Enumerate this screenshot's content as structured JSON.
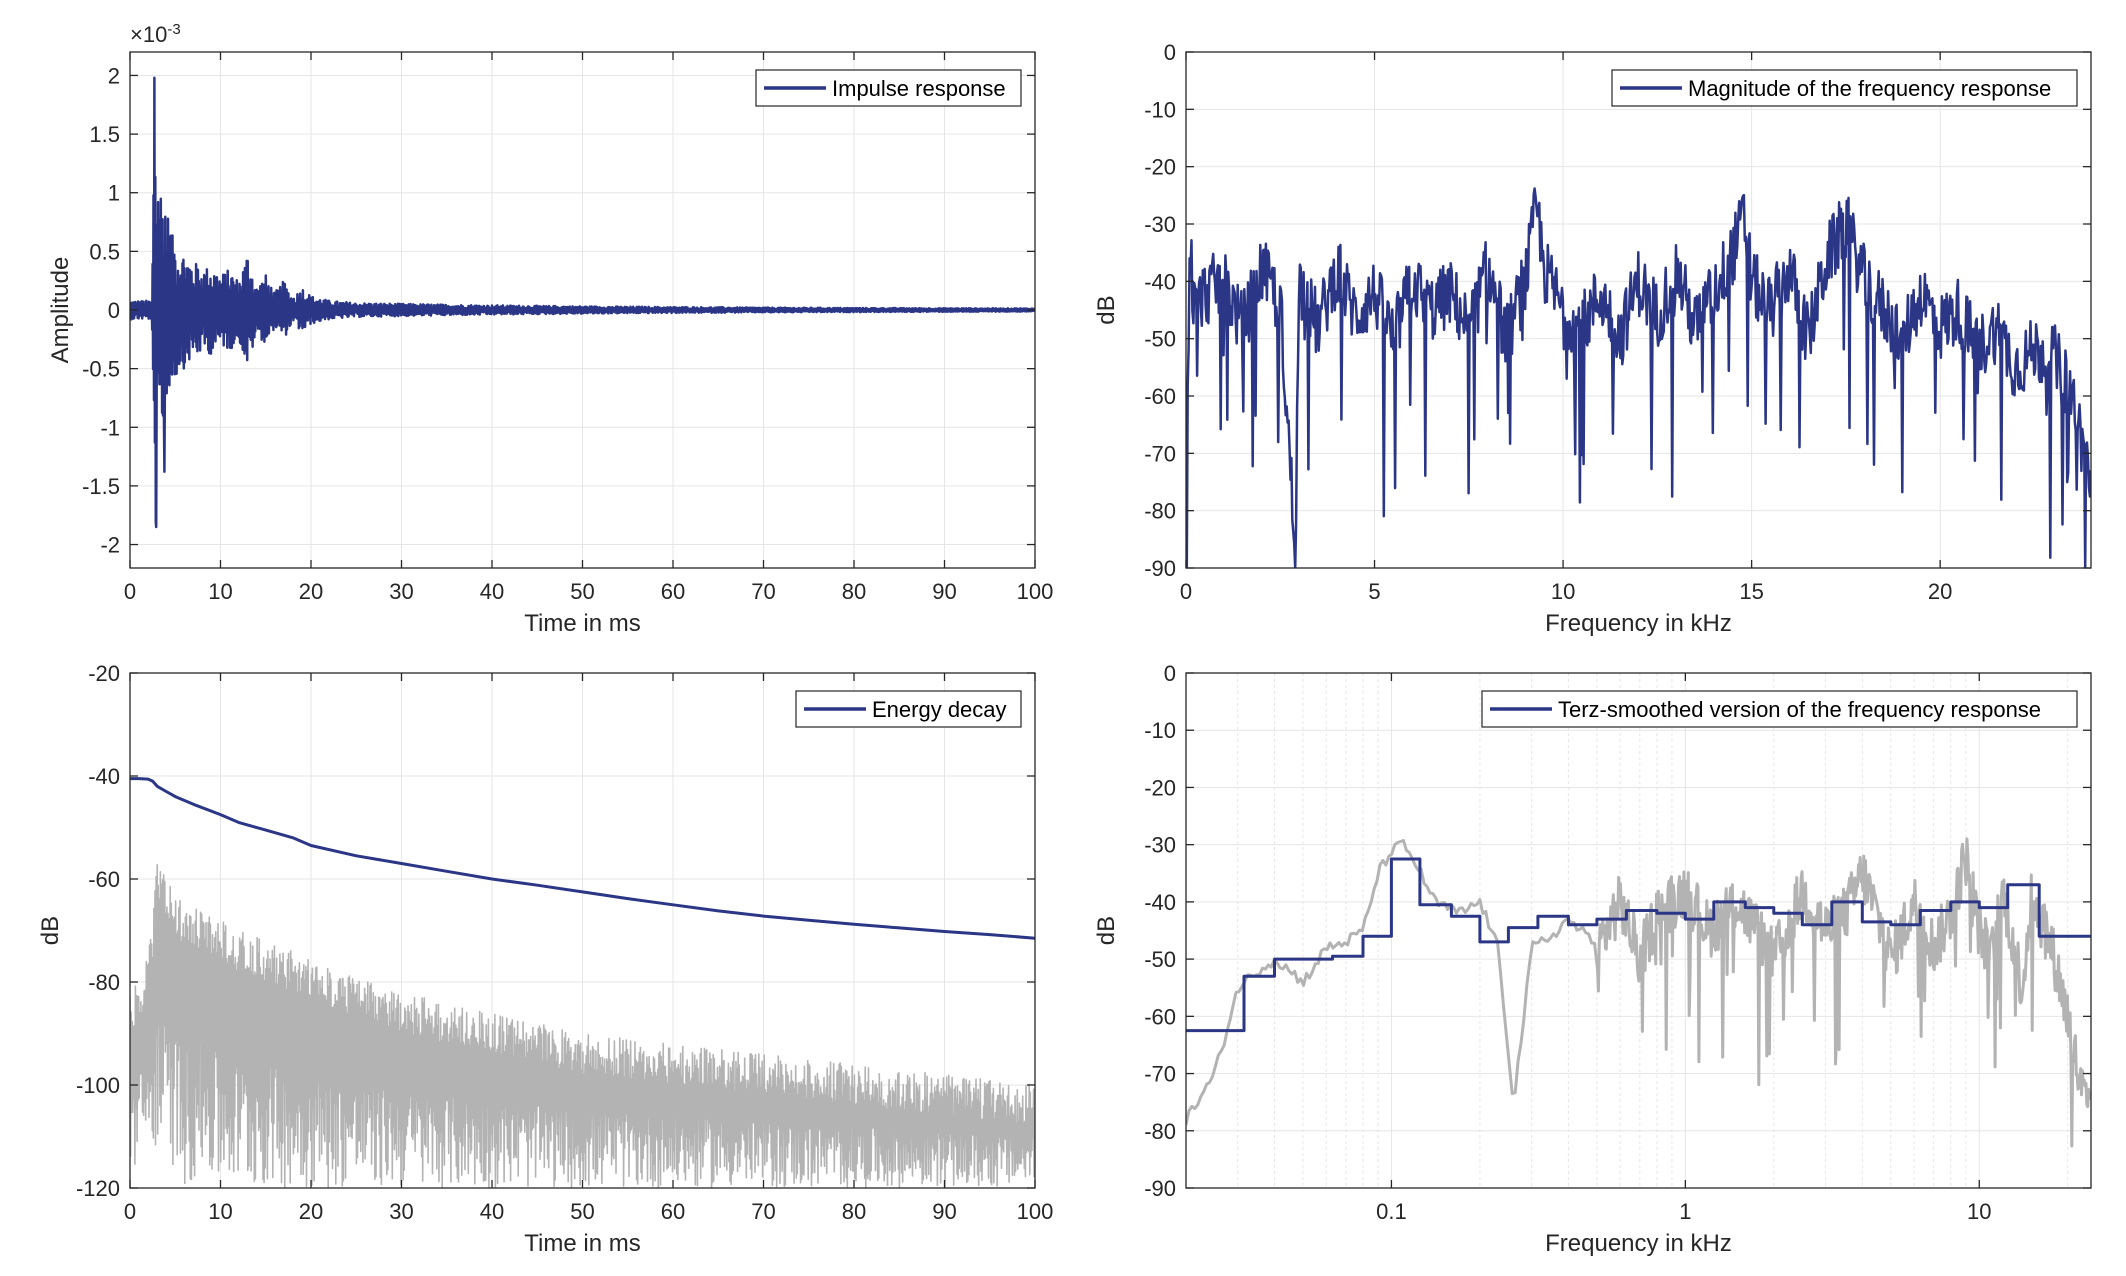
{
  "colors": {
    "primary": "#2b3686",
    "secondary": "#b3b3b3",
    "grid": "#e6e6e6",
    "axis": "#262626"
  },
  "chart_data": [
    {
      "id": "impulse",
      "type": "line",
      "xlabel": "Time in ms",
      "ylabel": "Amplitude",
      "exponent_label": "×10",
      "exponent_power": "-3",
      "xlim": [
        0,
        100
      ],
      "ylim": [
        -2.2,
        2.2
      ],
      "xticks": [
        0,
        10,
        20,
        30,
        40,
        50,
        60,
        70,
        80,
        90,
        100
      ],
      "xtick_labels": [
        "0",
        "10",
        "20",
        "30",
        "40",
        "50",
        "60",
        "70",
        "80",
        "90",
        "100"
      ],
      "yticks": [
        2,
        1.5,
        1,
        0.5,
        0,
        -0.5,
        -1,
        -1.5,
        -2
      ],
      "ytick_labels": [
        "2",
        "1.5",
        "1",
        "0.5",
        "0",
        "-0.5",
        "-1",
        "-1.5",
        "-2"
      ],
      "grid": true,
      "legend": "top-right",
      "series": [
        {
          "name": "Impulse response",
          "color": "#2b3686",
          "x": [
            0,
            1,
            2,
            2.5,
            2.7,
            2.9,
            3.1,
            3.3,
            3.5,
            3.8,
            4,
            4.3,
            4.6,
            5,
            5.5,
            6,
            6.5,
            7,
            7.5,
            8,
            9,
            10,
            11,
            12,
            13,
            14,
            15,
            16,
            17,
            18,
            19,
            20,
            22,
            25,
            30,
            40,
            50,
            60,
            70,
            80,
            90,
            100
          ],
          "y": [
            0.05,
            -0.08,
            0.1,
            -0.5,
            1.98,
            -1.85,
            1.2,
            -1.3,
            0.9,
            -1.38,
            0.7,
            -0.9,
            0.65,
            -0.6,
            0.5,
            -0.5,
            0.45,
            -0.4,
            0.4,
            -0.35,
            0.38,
            -0.3,
            0.35,
            -0.25,
            0.5,
            -0.2,
            0.3,
            -0.15,
            0.25,
            -0.1,
            0.2,
            -0.12,
            0.08,
            -0.06,
            0.05,
            -0.03,
            0.03,
            -0.02,
            0.02,
            -0.015,
            0.01,
            0
          ]
        }
      ]
    },
    {
      "id": "magnitude",
      "type": "line",
      "xlabel": "Frequency in kHz",
      "ylabel": "dB",
      "xlim": [
        0,
        24
      ],
      "ylim": [
        -90,
        0
      ],
      "xticks": [
        0,
        5,
        10,
        15,
        20
      ],
      "xtick_labels": [
        "0",
        "5",
        "10",
        "15",
        "20"
      ],
      "yticks": [
        0,
        -10,
        -20,
        -30,
        -40,
        -50,
        -60,
        -70,
        -80,
        -90
      ],
      "ytick_labels": [
        "0",
        "-10",
        "-20",
        "-30",
        "-40",
        "-50",
        "-60",
        "-70",
        "-80",
        "-90"
      ],
      "grid": true,
      "legend": "top-right",
      "series": [
        {
          "name": "Magnitude of the frequency response",
          "color": "#2b3686",
          "x": [
            0,
            0.1,
            0.2,
            0.5,
            1,
            1.5,
            2,
            2.5,
            2.9,
            3,
            3.5,
            4,
            4.5,
            5,
            5.5,
            6,
            6.5,
            7,
            7.5,
            8,
            8.5,
            9,
            9.3,
            9.5,
            10,
            10.5,
            11,
            11.5,
            12,
            12.5,
            13,
            13.5,
            14,
            14.5,
            14.8,
            15,
            15.5,
            16,
            16.5,
            17,
            17.5,
            18,
            18.5,
            19,
            19.5,
            20,
            20.5,
            21,
            21.5,
            22,
            22.5,
            23,
            23.5,
            24
          ],
          "y": [
            -90,
            -30,
            -45,
            -42,
            -40,
            -48,
            -38,
            -44,
            -87,
            -40,
            -48,
            -38,
            -46,
            -42,
            -50,
            -40,
            -45,
            -42,
            -48,
            -38,
            -50,
            -40,
            -27,
            -38,
            -45,
            -48,
            -42,
            -50,
            -40,
            -46,
            -38,
            -48,
            -42,
            -35,
            -29,
            -40,
            -45,
            -38,
            -50,
            -36,
            -30,
            -40,
            -45,
            -50,
            -42,
            -48,
            -45,
            -52,
            -48,
            -55,
            -52,
            -53,
            -60,
            -75
          ]
        }
      ]
    },
    {
      "id": "decay",
      "type": "line",
      "xlabel": "Time in ms",
      "ylabel": "dB",
      "xlim": [
        0,
        100
      ],
      "ylim": [
        -120,
        -20
      ],
      "xticks": [
        0,
        10,
        20,
        30,
        40,
        50,
        60,
        70,
        80,
        90,
        100
      ],
      "xtick_labels": [
        "0",
        "10",
        "20",
        "30",
        "40",
        "50",
        "60",
        "70",
        "80",
        "90",
        "100"
      ],
      "yticks": [
        -20,
        -40,
        -60,
        -80,
        -100,
        -120
      ],
      "ytick_labels": [
        "-20",
        "-40",
        "-60",
        "-80",
        "-100",
        "-120"
      ],
      "grid": true,
      "legend": "top-right",
      "series": [
        {
          "name": "",
          "color": "#b3b3b3",
          "x": [
            0,
            1,
            2,
            2.5,
            3,
            4,
            5,
            6,
            8,
            10,
            12,
            15,
            18,
            20,
            25,
            30,
            35,
            40,
            45,
            50,
            55,
            60,
            65,
            70,
            75,
            80,
            85,
            90,
            95,
            100
          ],
          "y_top": [
            -82,
            -80,
            -75,
            -68,
            -55,
            -60,
            -63,
            -65,
            -66,
            -68,
            -70,
            -72,
            -74,
            -76,
            -79,
            -82,
            -84,
            -86,
            -88,
            -90,
            -91,
            -92,
            -93,
            -94,
            -95,
            -96,
            -97,
            -98,
            -99,
            -100
          ],
          "y_bottom": [
            -118,
            -115,
            -112,
            -120,
            -110,
            -118,
            -115,
            -120,
            -118,
            -120,
            -120,
            -120,
            -120,
            -120,
            -120,
            -120,
            -120,
            -120,
            -120,
            -120,
            -120,
            -120,
            -120,
            -120,
            -120,
            -120,
            -120,
            -120,
            -120,
            -120
          ]
        },
        {
          "name": "Energy decay",
          "color": "#2b3686",
          "x": [
            0,
            1,
            2,
            2.5,
            3,
            4,
            5,
            7,
            10,
            12,
            15,
            18,
            20,
            25,
            30,
            35,
            40,
            45,
            50,
            55,
            60,
            65,
            70,
            75,
            80,
            85,
            90,
            95,
            100
          ],
          "y": [
            -40.5,
            -40.5,
            -40.6,
            -41,
            -42,
            -43,
            -44,
            -45.5,
            -47.5,
            -49,
            -50.5,
            -52,
            -53.5,
            -55.5,
            -57,
            -58.5,
            -60,
            -61.2,
            -62.5,
            -63.8,
            -65,
            -66.2,
            -67.2,
            -68,
            -68.8,
            -69.5,
            -70.2,
            -70.8,
            -71.5
          ]
        }
      ]
    },
    {
      "id": "terz",
      "type": "line",
      "xscale": "log",
      "xlabel": "Frequency in kHz",
      "ylabel": "dB",
      "xlim": [
        0.02,
        24
      ],
      "ylim": [
        -90,
        0
      ],
      "xticks": [
        0.1,
        1,
        10
      ],
      "xtick_labels": [
        "0.1",
        "1",
        "10"
      ],
      "yticks": [
        0,
        -10,
        -20,
        -30,
        -40,
        -50,
        -60,
        -70,
        -80,
        -90
      ],
      "ytick_labels": [
        "0",
        "-10",
        "-20",
        "-30",
        "-40",
        "-50",
        "-60",
        "-70",
        "-80",
        "-90"
      ],
      "grid": true,
      "legend": "top-right",
      "series": [
        {
          "name": "",
          "color": "#b3b3b3",
          "x": [
            0.02,
            0.025,
            0.03,
            0.035,
            0.04,
            0.05,
            0.06,
            0.07,
            0.08,
            0.09,
            0.1,
            0.11,
            0.12,
            0.14,
            0.17,
            0.2,
            0.23,
            0.26,
            0.3,
            0.35,
            0.4,
            0.5,
            0.6,
            0.7,
            0.8,
            1,
            1.2,
            1.5,
            2,
            2.5,
            3,
            3.5,
            4,
            5,
            6,
            7,
            8,
            9,
            10,
            11,
            12,
            14,
            15,
            17,
            20,
            22,
            24
          ],
          "y": [
            -78,
            -70,
            -55,
            -52,
            -50,
            -54,
            -48,
            -47,
            -45,
            -35,
            -31,
            -30,
            -33,
            -40,
            -42,
            -40,
            -48,
            -75,
            -48,
            -46,
            -43,
            -48,
            -40,
            -50,
            -42,
            -38,
            -45,
            -40,
            -50,
            -38,
            -45,
            -42,
            -35,
            -50,
            -40,
            -48,
            -42,
            -32,
            -45,
            -50,
            -38,
            -55,
            -40,
            -45,
            -60,
            -72,
            -78
          ]
        },
        {
          "name": "Terz-smoothed version of the frequency response",
          "color": "#2b3686",
          "x": [
            0.02,
            0.0315,
            0.0315,
            0.04,
            0.04,
            0.05,
            0.05,
            0.063,
            0.063,
            0.08,
            0.08,
            0.1,
            0.1,
            0.125,
            0.125,
            0.16,
            0.16,
            0.2,
            0.2,
            0.25,
            0.25,
            0.315,
            0.315,
            0.4,
            0.4,
            0.5,
            0.5,
            0.63,
            0.63,
            0.8,
            0.8,
            1,
            1,
            1.25,
            1.25,
            1.6,
            1.6,
            2,
            2,
            2.5,
            2.5,
            3.15,
            3.15,
            4,
            4,
            5,
            5,
            6.3,
            6.3,
            8,
            8,
            10,
            10,
            12.5,
            12.5,
            16,
            16,
            20,
            20,
            24
          ],
          "y": [
            -62.5,
            -62.5,
            -53,
            -53,
            -50,
            -50,
            -50,
            -50,
            -49.5,
            -49.5,
            -46,
            -46,
            -32.5,
            -32.5,
            -40.5,
            -40.5,
            -42.5,
            -42.5,
            -47,
            -47,
            -44.5,
            -44.5,
            -42.5,
            -42.5,
            -44,
            -44,
            -43,
            -43,
            -41.5,
            -41.5,
            -42,
            -42,
            -43,
            -43,
            -40,
            -40,
            -41,
            -41,
            -42,
            -42,
            -44,
            -44,
            -40,
            -40,
            -43.5,
            -43.5,
            -44,
            -44,
            -41.5,
            -41.5,
            -40,
            -40,
            -41,
            -41,
            -37,
            -37,
            -46,
            -46,
            -46,
            -46
          ]
        }
      ]
    }
  ]
}
